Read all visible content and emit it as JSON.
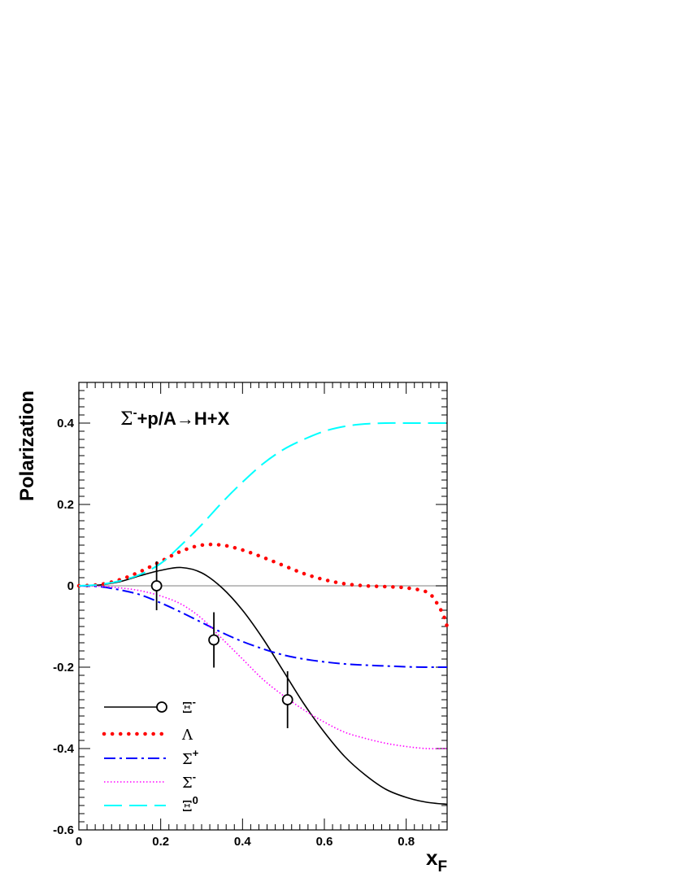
{
  "chart_data": {
    "type": "line",
    "annotation": {
      "sigma": "Σ",
      "sigma_sup": "-",
      "rest": "+p/A→H+X"
    },
    "xlabel": {
      "main": "x",
      "sub": "F"
    },
    "ylabel": "Polarization",
    "xlim": [
      0,
      0.9
    ],
    "ylim": [
      -0.6,
      0.5
    ],
    "x_ticks": [
      {
        "v": 0,
        "label": "0"
      },
      {
        "v": 0.2,
        "label": "0.2"
      },
      {
        "v": 0.4,
        "label": "0.4"
      },
      {
        "v": 0.6,
        "label": "0.6"
      },
      {
        "v": 0.8,
        "label": "0.8"
      }
    ],
    "y_ticks": [
      {
        "v": -0.6,
        "label": "-0.6"
      },
      {
        "v": -0.4,
        "label": "-0.4"
      },
      {
        "v": -0.2,
        "label": "-0.2"
      },
      {
        "v": 0,
        "label": "0"
      },
      {
        "v": 0.2,
        "label": "0.2"
      },
      {
        "v": 0.4,
        "label": "0.4"
      }
    ],
    "reference_line_y": 0,
    "series": [
      {
        "name": "Ξ-",
        "color": "#000000",
        "dash": "",
        "width": 1.6,
        "x": [
          0,
          0.05,
          0.1,
          0.15,
          0.2,
          0.25,
          0.3,
          0.35,
          0.4,
          0.45,
          0.5,
          0.55,
          0.6,
          0.65,
          0.7,
          0.75,
          0.8,
          0.85,
          0.9
        ],
        "y": [
          0,
          0.002,
          0.01,
          0.025,
          0.038,
          0.045,
          0.032,
          -0.005,
          -0.06,
          -0.13,
          -0.21,
          -0.29,
          -0.36,
          -0.42,
          -0.465,
          -0.5,
          -0.52,
          -0.532,
          -0.537
        ]
      },
      {
        "name": "Λ",
        "color": "#ff0000",
        "dash": "0.1 10",
        "width": 4.5,
        "linecap": "round",
        "x": [
          0,
          0.05,
          0.1,
          0.15,
          0.2,
          0.25,
          0.3,
          0.35,
          0.4,
          0.45,
          0.5,
          0.55,
          0.6,
          0.65,
          0.7,
          0.75,
          0.8,
          0.85,
          0.87,
          0.89,
          0.9
        ],
        "y": [
          0,
          0.003,
          0.015,
          0.035,
          0.06,
          0.085,
          0.1,
          0.1,
          0.088,
          0.07,
          0.05,
          0.03,
          0.015,
          0.005,
          0.0,
          -0.002,
          -0.005,
          -0.015,
          -0.035,
          -0.07,
          -0.1
        ]
      },
      {
        "name": "Σ+",
        "color": "#0000ff",
        "dash": "14 5 3 5",
        "width": 2,
        "x": [
          0,
          0.05,
          0.1,
          0.15,
          0.2,
          0.25,
          0.3,
          0.35,
          0.4,
          0.45,
          0.5,
          0.55,
          0.6,
          0.65,
          0.7,
          0.75,
          0.8,
          0.85,
          0.9
        ],
        "y": [
          0,
          -0.002,
          -0.01,
          -0.022,
          -0.042,
          -0.065,
          -0.09,
          -0.115,
          -0.137,
          -0.155,
          -0.17,
          -0.18,
          -0.187,
          -0.192,
          -0.195,
          -0.197,
          -0.199,
          -0.2,
          -0.2
        ]
      },
      {
        "name": "Σ-",
        "color": "#ff00ff",
        "dash": "1.5 2.5",
        "width": 1.6,
        "x": [
          0,
          0.05,
          0.1,
          0.15,
          0.2,
          0.25,
          0.3,
          0.35,
          0.4,
          0.45,
          0.5,
          0.55,
          0.6,
          0.65,
          0.7,
          0.75,
          0.8,
          0.85,
          0.9
        ],
        "y": [
          0,
          -0.001,
          -0.005,
          -0.012,
          -0.025,
          -0.045,
          -0.08,
          -0.13,
          -0.18,
          -0.23,
          -0.27,
          -0.305,
          -0.335,
          -0.36,
          -0.375,
          -0.387,
          -0.395,
          -0.4,
          -0.4
        ]
      },
      {
        "name": "Ξ0",
        "color": "#00ffff",
        "dash": "22 9",
        "width": 2,
        "x": [
          0,
          0.05,
          0.1,
          0.15,
          0.2,
          0.25,
          0.3,
          0.35,
          0.4,
          0.45,
          0.5,
          0.55,
          0.6,
          0.65,
          0.7,
          0.75,
          0.8,
          0.85,
          0.9
        ],
        "y": [
          0,
          0.003,
          0.012,
          0.028,
          0.055,
          0.1,
          0.15,
          0.205,
          0.255,
          0.3,
          0.335,
          0.36,
          0.38,
          0.392,
          0.398,
          0.4,
          0.4,
          0.4,
          0.4
        ]
      }
    ],
    "data_points": [
      {
        "x": 0.19,
        "y": 0.0,
        "err": 0.06
      },
      {
        "x": 0.33,
        "y": -0.133,
        "err": 0.068
      },
      {
        "x": 0.51,
        "y": -0.28,
        "err": 0.07
      }
    ],
    "legend": {
      "placement": "bottom-left",
      "entries": [
        {
          "main": "Ξ",
          "sup": "-",
          "series": 0,
          "marker": true
        },
        {
          "main": "Λ",
          "sup": "",
          "series": 1,
          "marker": false
        },
        {
          "main": "Σ",
          "sup": "+",
          "series": 2,
          "marker": false
        },
        {
          "main": "Σ",
          "sup": "-",
          "series": 3,
          "marker": false
        },
        {
          "main": "Ξ",
          "sup": "0",
          "series": 4,
          "marker": false
        }
      ]
    }
  }
}
